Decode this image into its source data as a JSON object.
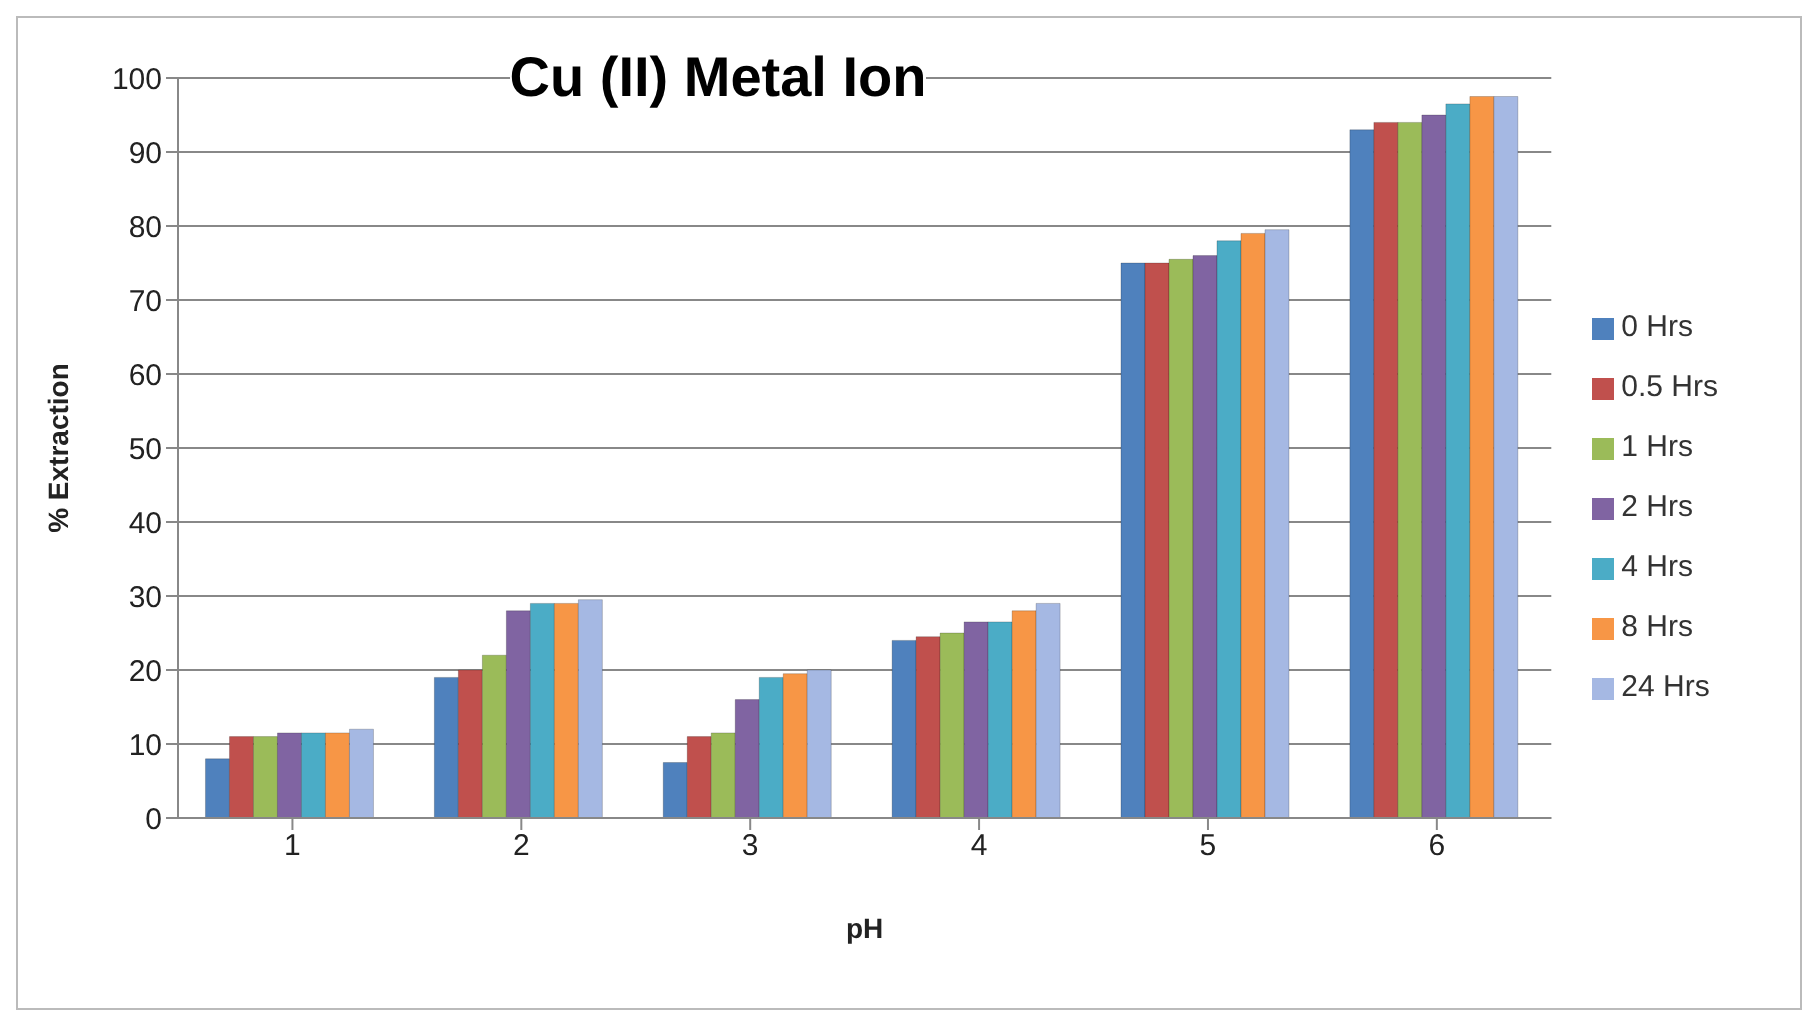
{
  "chart_data": {
    "type": "bar",
    "title": "Cu (II) Metal Ion",
    "xlabel": "pH",
    "ylabel": "% Extraction",
    "categories": [
      "1",
      "2",
      "3",
      "4",
      "5",
      "6"
    ],
    "series": [
      {
        "name": "0 Hrs",
        "color": "#4f81bd",
        "values": [
          8,
          19,
          7.5,
          24,
          75,
          93
        ]
      },
      {
        "name": "0.5 Hrs",
        "color": "#c0504d",
        "values": [
          11,
          20,
          11,
          24.5,
          75,
          94
        ]
      },
      {
        "name": "1 Hrs",
        "color": "#9bbb59",
        "values": [
          11,
          22,
          11.5,
          25,
          75.5,
          94
        ]
      },
      {
        "name": "2 Hrs",
        "color": "#8064a2",
        "values": [
          11.5,
          28,
          16,
          26.5,
          76,
          95
        ]
      },
      {
        "name": "4 Hrs",
        "color": "#4bacc6",
        "values": [
          11.5,
          29,
          19,
          26.5,
          78,
          96.5
        ]
      },
      {
        "name": "8 Hrs",
        "color": "#f79646",
        "values": [
          11.5,
          29,
          19.5,
          28,
          79,
          97.5
        ]
      },
      {
        "name": "24 Hrs",
        "color": "#a5b8e3",
        "values": [
          12,
          29.5,
          20,
          29,
          79.5,
          97.5
        ]
      }
    ],
    "ylim": [
      0,
      100
    ],
    "yticks": [
      0,
      10,
      20,
      30,
      40,
      50,
      60,
      70,
      80,
      90,
      100
    ],
    "grid": "y",
    "legend": "right"
  }
}
